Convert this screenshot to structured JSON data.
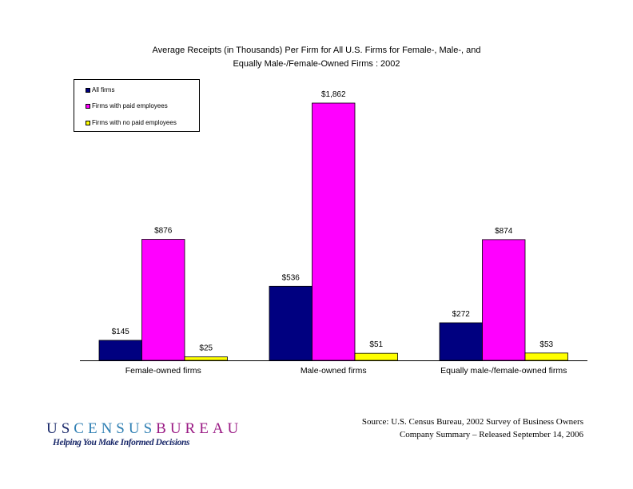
{
  "chart_data": {
    "type": "bar",
    "title_line1": "Average Receipts (in Thousands) Per Firm for All U.S. Firms for Female-, Male-, and",
    "title_line2": "Equally Male-/Female-Owned Firms :  2002",
    "categories": [
      "Female-owned firms",
      "Male-owned firms",
      "Equally male-/female-owned firms"
    ],
    "series": [
      {
        "name": "All firms",
        "color": "#000080",
        "values": [
          145,
          536,
          272
        ],
        "labels": [
          "$145",
          "$536",
          "$272"
        ]
      },
      {
        "name": "Firms with paid employees",
        "color": "#ff00ff",
        "values": [
          876,
          1862,
          874
        ],
        "labels": [
          "$876",
          "$1,862",
          "$874"
        ]
      },
      {
        "name": "Firms with no paid employees",
        "color": "#ffff00",
        "values": [
          25,
          51,
          53
        ],
        "labels": [
          "$25",
          "$51",
          "$53"
        ]
      }
    ],
    "ylim": [
      0,
      2000
    ],
    "legend_position": "top-left",
    "grid": false
  },
  "footer": {
    "logo_text": "USCENSUSBUREAU",
    "logo_tagline": "Helping You Make Informed Decisions",
    "source_line1": "Source:  U.S. Census Bureau, 2002 Survey of Business Owners",
    "source_line2": "Company Summary – Released September 14, 2006"
  }
}
